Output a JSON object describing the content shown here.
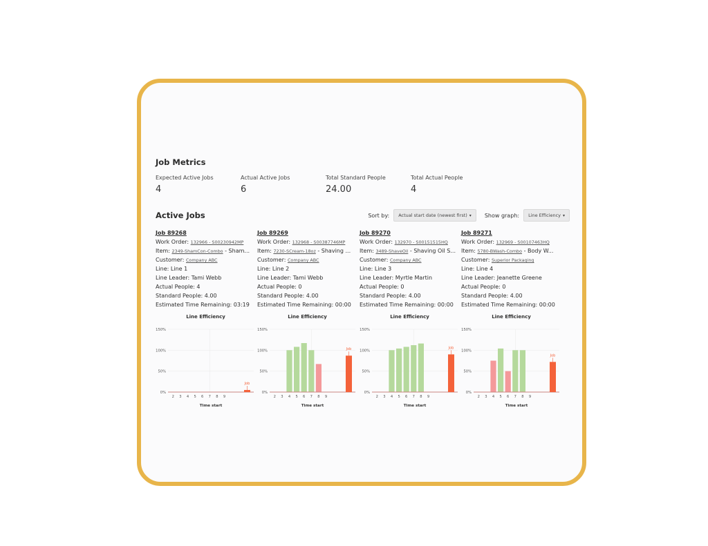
{
  "metrics": {
    "title": "Job Metrics",
    "items": [
      {
        "label": "Expected Active Jobs",
        "value": "4"
      },
      {
        "label": "Actual Active Jobs",
        "value": "6"
      },
      {
        "label": "Total Standard People",
        "value": "24.00"
      },
      {
        "label": "Total Actual People",
        "value": "4"
      }
    ]
  },
  "active_jobs": {
    "title": "Active Jobs",
    "sort_label": "Sort by:",
    "sort_value": "Actual start date (newest first)",
    "graph_label": "Show graph:",
    "graph_value": "Line Efficiency",
    "caret": "▾"
  },
  "jobs": [
    {
      "title": "Job 89268",
      "work_order_label": "Work Order: ",
      "work_order": "132966 - S00230942MP",
      "item_label": "Item: ",
      "item_link": "2349-ShamCon-Combo",
      "item_rest": " - Sham...",
      "customer_label": "Customer: ",
      "customer": "Company ABC",
      "line": "Line: Line 1",
      "line_leader": "Line Leader: Tami Webb",
      "actual_people": "Actual People: 4",
      "standard_people": "Standard People: 4.00",
      "time_remaining": "Estimated Time Remaining: 03:19"
    },
    {
      "title": "Job 89269",
      "work_order_label": "Work Order: ",
      "work_order": "132968 - S00387746MP",
      "item_label": "Item: ",
      "item_link": "7230-SCream-18oz",
      "item_rest": " - Shaving ...",
      "customer_label": "Customer: ",
      "customer": "Company ABC",
      "line": "Line: Line 2",
      "line_leader": "Line Leader: Tami Webb",
      "actual_people": "Actual People: 0",
      "standard_people": "Standard People: 4.00",
      "time_remaining": "Estimated Time Remaining: 00:00"
    },
    {
      "title": "Job 89270",
      "work_order_label": "Work Order: ",
      "work_order": "132970 - S00151515HQ",
      "item_label": "Item: ",
      "item_link": "3489-ShaveOil",
      "item_rest": " - Shaving Oil S...",
      "customer_label": "Customer: ",
      "customer": "Company ABC",
      "line": "Line: Line 3",
      "line_leader": "Line Leader: Myrtle Martin",
      "actual_people": "Actual People: 0",
      "standard_people": "Standard People: 4.00",
      "time_remaining": "Estimated Time Remaining: 00:00"
    },
    {
      "title": "Job 89271",
      "work_order_label": "Work Order: ",
      "work_order": "132969 - S00107463HQ",
      "item_label": "Item: ",
      "item_link": "5780-BWash-Combo",
      "item_rest": " - Body W...",
      "customer_label": "Customer: ",
      "customer": "Superior Packaging",
      "line": "Line: Line 4",
      "line_leader": "Line Leader: Jeanette Greene",
      "actual_people": "Actual People: 0",
      "standard_people": "Standard People: 4.00",
      "time_remaining": "Estimated Time Remaining: 00:00"
    }
  ],
  "colors": {
    "good": "#b5d99c",
    "warn": "#f4999a",
    "job": "#f4623a",
    "frame": "#e8b54a"
  },
  "chart_data": [
    {
      "type": "bar",
      "title": "Line Efficiency",
      "xlabel": "Time start",
      "categories": [
        "2",
        "3",
        "4",
        "5",
        "6",
        "7",
        "8",
        "9"
      ],
      "values": [
        0,
        0,
        0,
        0,
        0,
        0,
        0,
        0
      ],
      "job_label": "Job",
      "job_value": 5,
      "yticks": [
        "0%",
        "50%",
        "100%",
        "150%"
      ],
      "ylim": [
        0,
        150
      ]
    },
    {
      "type": "bar",
      "title": "Line Efficiency",
      "xlabel": "Time start",
      "categories": [
        "2",
        "3",
        "4",
        "5",
        "6",
        "7",
        "8",
        "9"
      ],
      "values": [
        0,
        0,
        100,
        108,
        117,
        100,
        67,
        0
      ],
      "job_label": "Job",
      "job_value": 87,
      "yticks": [
        "0%",
        "50%",
        "100%",
        "150%"
      ],
      "ylim": [
        0,
        150
      ]
    },
    {
      "type": "bar",
      "title": "Line Efficiency",
      "xlabel": "Time start",
      "categories": [
        "2",
        "3",
        "4",
        "5",
        "6",
        "7",
        "8",
        "9"
      ],
      "values": [
        0,
        0,
        100,
        104,
        108,
        112,
        116,
        0
      ],
      "job_label": "Job",
      "job_value": 90,
      "yticks": [
        "0%",
        "50%",
        "100%",
        "150%"
      ],
      "ylim": [
        0,
        150
      ]
    },
    {
      "type": "bar",
      "title": "Line Efficiency",
      "xlabel": "Time start",
      "categories": [
        "2",
        "3",
        "4",
        "5",
        "6",
        "7",
        "8",
        "9"
      ],
      "values": [
        0,
        0,
        75,
        104,
        50,
        100,
        100,
        0
      ],
      "job_label": "Job",
      "job_value": 72,
      "yticks": [
        "0%",
        "50%",
        "100%",
        "150%"
      ],
      "ylim": [
        0,
        150
      ]
    }
  ]
}
